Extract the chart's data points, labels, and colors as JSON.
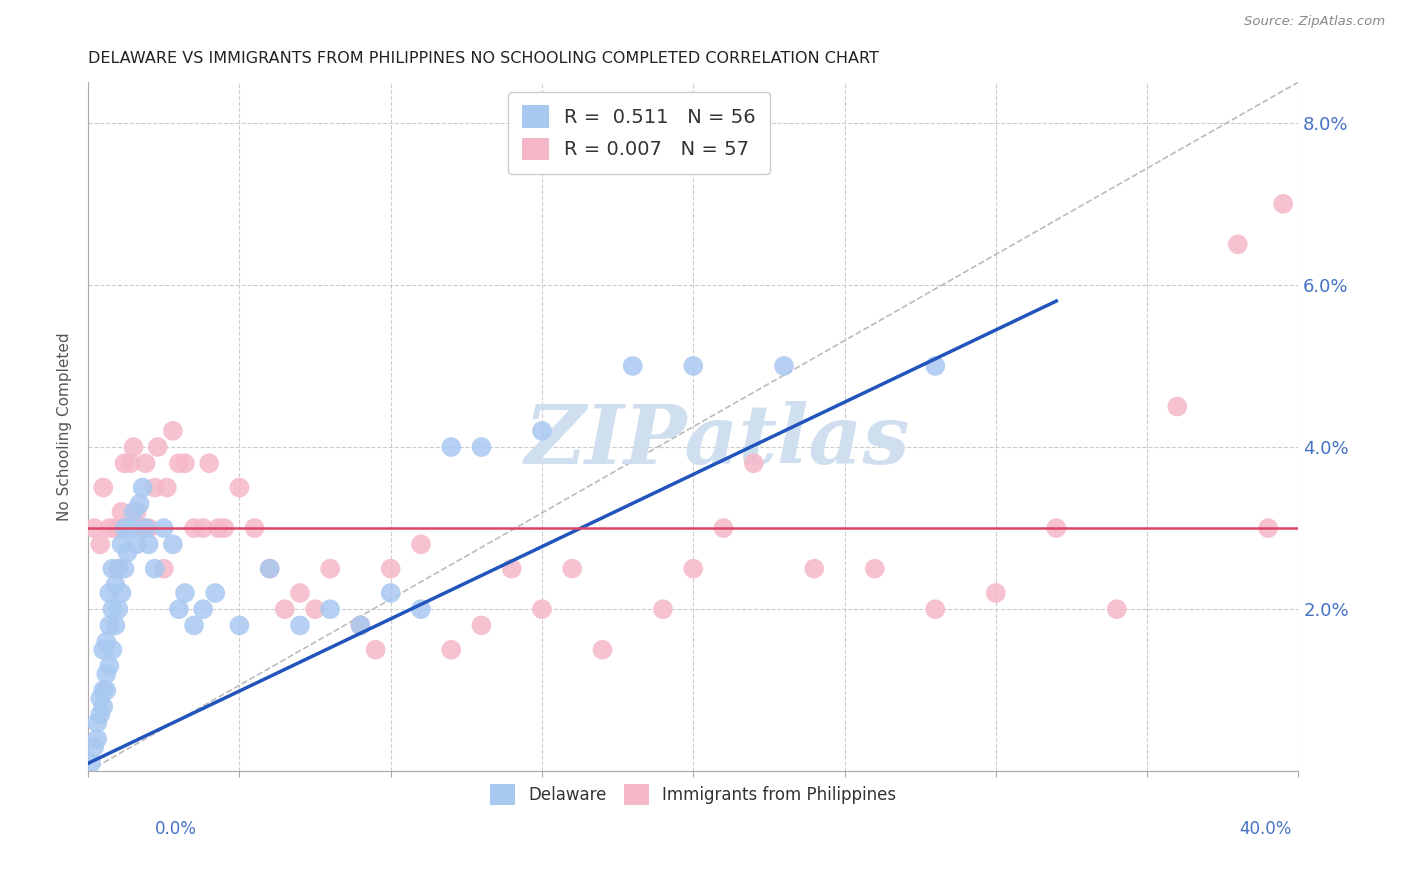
{
  "title": "DELAWARE VS IMMIGRANTS FROM PHILIPPINES NO SCHOOLING COMPLETED CORRELATION CHART",
  "source": "Source: ZipAtlas.com",
  "ylabel": "No Schooling Completed",
  "xlim": [
    0.0,
    0.4
  ],
  "ylim": [
    0.0,
    0.085
  ],
  "yticks": [
    0.0,
    0.02,
    0.04,
    0.06,
    0.08
  ],
  "ytick_labels": [
    "",
    "2.0%",
    "4.0%",
    "6.0%",
    "8.0%"
  ],
  "xticks": [
    0.0,
    0.05,
    0.1,
    0.15,
    0.2,
    0.25,
    0.3,
    0.35,
    0.4
  ],
  "legend_r1_val": "0.511",
  "legend_n1_val": "56",
  "legend_r2_val": "0.007",
  "legend_n2_val": "57",
  "blue_color": "#a8c8f0",
  "pink_color": "#f5b8c8",
  "trend_blue_color": "#2255bb",
  "trend_pink_color": "#dd4466",
  "watermark_color": "#d0dff0",
  "background_color": "#ffffff",
  "grid_color": "#cccccc",
  "blue_x": [
    0.001,
    0.002,
    0.003,
    0.003,
    0.004,
    0.004,
    0.005,
    0.005,
    0.005,
    0.006,
    0.006,
    0.006,
    0.007,
    0.007,
    0.007,
    0.008,
    0.008,
    0.008,
    0.009,
    0.009,
    0.01,
    0.01,
    0.011,
    0.011,
    0.012,
    0.012,
    0.013,
    0.014,
    0.015,
    0.016,
    0.017,
    0.018,
    0.019,
    0.02,
    0.022,
    0.025,
    0.028,
    0.03,
    0.032,
    0.035,
    0.038,
    0.042,
    0.05,
    0.06,
    0.07,
    0.08,
    0.09,
    0.1,
    0.11,
    0.12,
    0.13,
    0.15,
    0.18,
    0.2,
    0.23,
    0.28
  ],
  "blue_y": [
    0.001,
    0.003,
    0.004,
    0.006,
    0.007,
    0.009,
    0.008,
    0.01,
    0.015,
    0.01,
    0.012,
    0.016,
    0.013,
    0.018,
    0.022,
    0.015,
    0.02,
    0.025,
    0.018,
    0.023,
    0.02,
    0.025,
    0.022,
    0.028,
    0.025,
    0.03,
    0.027,
    0.03,
    0.032,
    0.028,
    0.033,
    0.035,
    0.03,
    0.028,
    0.025,
    0.03,
    0.028,
    0.02,
    0.022,
    0.018,
    0.02,
    0.022,
    0.018,
    0.025,
    0.018,
    0.02,
    0.018,
    0.022,
    0.02,
    0.04,
    0.04,
    0.042,
    0.05,
    0.05,
    0.05,
    0.05
  ],
  "pink_x": [
    0.002,
    0.004,
    0.005,
    0.007,
    0.009,
    0.01,
    0.011,
    0.012,
    0.014,
    0.015,
    0.016,
    0.018,
    0.019,
    0.02,
    0.022,
    0.023,
    0.025,
    0.026,
    0.028,
    0.03,
    0.032,
    0.035,
    0.038,
    0.04,
    0.043,
    0.045,
    0.05,
    0.055,
    0.06,
    0.065,
    0.07,
    0.075,
    0.08,
    0.09,
    0.095,
    0.1,
    0.11,
    0.12,
    0.13,
    0.14,
    0.15,
    0.16,
    0.17,
    0.19,
    0.2,
    0.21,
    0.22,
    0.24,
    0.26,
    0.28,
    0.3,
    0.32,
    0.34,
    0.36,
    0.38,
    0.39,
    0.395
  ],
  "pink_y": [
    0.03,
    0.028,
    0.035,
    0.03,
    0.03,
    0.025,
    0.032,
    0.038,
    0.038,
    0.04,
    0.032,
    0.03,
    0.038,
    0.03,
    0.035,
    0.04,
    0.025,
    0.035,
    0.042,
    0.038,
    0.038,
    0.03,
    0.03,
    0.038,
    0.03,
    0.03,
    0.035,
    0.03,
    0.025,
    0.02,
    0.022,
    0.02,
    0.025,
    0.018,
    0.015,
    0.025,
    0.028,
    0.015,
    0.018,
    0.025,
    0.02,
    0.025,
    0.015,
    0.02,
    0.025,
    0.03,
    0.038,
    0.025,
    0.025,
    0.02,
    0.022,
    0.03,
    0.02,
    0.045,
    0.065,
    0.03,
    0.07
  ],
  "blue_trend_x0": 0.0,
  "blue_trend_y0": 0.001,
  "blue_trend_x1": 0.32,
  "blue_trend_y1": 0.058,
  "pink_trend_x0": 0.0,
  "pink_trend_y0": 0.03,
  "pink_trend_x1": 0.4,
  "pink_trend_y1": 0.03
}
